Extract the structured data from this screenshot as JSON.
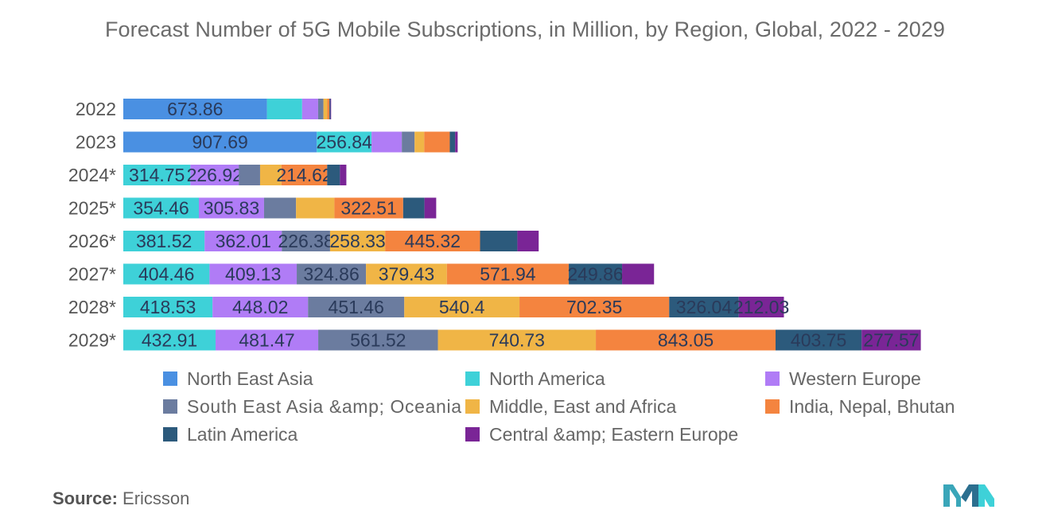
{
  "title": "Forecast Number of 5G Mobile Subscriptions, in Million, by Region, Global, 2022 - 2029",
  "source_label": "Source:",
  "source_value": "Ericsson",
  "logo_name": "mordor-intelligence-logo",
  "chart_data": {
    "type": "bar",
    "orientation": "horizontal",
    "stacked": true,
    "categories": [
      "2022",
      "2023",
      "2024*",
      "2025*",
      "2026*",
      "2027*",
      "2028*",
      "2029*"
    ],
    "series": [
      {
        "name": "North East Asia",
        "color": "#4a90e2",
        "values": [
          673.86,
          907.69,
          0,
          0,
          0,
          0,
          0,
          0
        ],
        "labels": [
          "673.86",
          "907.69",
          "",
          "",
          "",
          "",
          "",
          ""
        ]
      },
      {
        "name": "North America",
        "color": "#3ed1d8",
        "values": [
          165,
          256.84,
          314.75,
          354.46,
          381.52,
          404.46,
          418.53,
          432.91
        ],
        "labels": [
          "",
          "256.84",
          "314.75",
          "354.46",
          "381.52",
          "404.46",
          "418.53",
          "432.91"
        ]
      },
      {
        "name": "Western Europe",
        "color": "#b07cf6",
        "values": [
          75,
          142,
          226.92,
          305.83,
          362.01,
          409.13,
          448.02,
          481.47
        ],
        "labels": [
          "",
          "",
          "226.92",
          "305.83",
          "362.01",
          "409.13",
          "448.02",
          "481.47"
        ]
      },
      {
        "name": "South East Asia &amp; Oceania",
        "color": "#6b7c9f",
        "values": [
          25,
          60,
          100,
          150,
          226.38,
          324.86,
          451.46,
          561.52
        ],
        "labels": [
          "",
          "",
          "",
          "",
          "226.38",
          "324.86",
          "451.46",
          "561.52"
        ]
      },
      {
        "name": "Middle, East and Africa",
        "color": "#f0b546",
        "values": [
          18,
          45,
          100,
          180,
          258.33,
          379.43,
          540.4,
          740.73
        ],
        "labels": [
          "",
          "",
          "",
          "",
          "258.33",
          "379.43",
          "540.4",
          "740.73"
        ]
      },
      {
        "name": "India, Nepal, Bhutan",
        "color": "#f4843f",
        "values": [
          10,
          120,
          214.62,
          322.51,
          445.32,
          571.94,
          702.35,
          843.05
        ],
        "labels": [
          "",
          "",
          "214.62",
          "322.51",
          "445.32",
          "571.94",
          "702.35",
          "843.05"
        ]
      },
      {
        "name": "Latin America",
        "color": "#2c5a7c",
        "values": [
          5,
          25,
          60,
          100,
          175,
          249.86,
          326.04,
          403.75
        ],
        "labels": [
          "",
          "",
          "",
          "",
          "",
          "249.86",
          "326.04",
          "403.75"
        ]
      },
      {
        "name": "Central &amp; Eastern Europe",
        "color": "#7a2596",
        "values": [
          3,
          12,
          30,
          55,
          100,
          150,
          212.03,
          277.57
        ],
        "labels": [
          "",
          "",
          "",
          "",
          "",
          "",
          "212.03",
          "277.57"
        ]
      }
    ],
    "xlim": [
      0,
      3750
    ],
    "grid": false,
    "legend": "bottom"
  }
}
